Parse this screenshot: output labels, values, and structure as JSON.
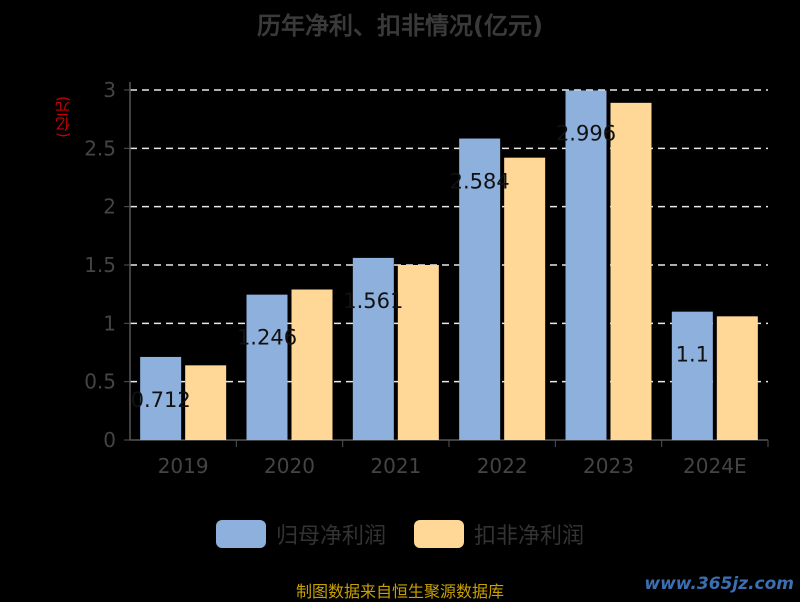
{
  "chart_data": {
    "type": "bar",
    "title": "历年净利、扣非情况(亿元)",
    "unit_label": "(亿元)",
    "categories": [
      "2019",
      "2020",
      "2021",
      "2022",
      "2023",
      "2024E"
    ],
    "series": [
      {
        "name": "归母净利润",
        "color": "#8eb0dd",
        "values": [
          0.712,
          1.246,
          1.561,
          2.584,
          2.996,
          1.1
        ],
        "labels": [
          "0.712",
          "1.246",
          "1.561",
          "2.584",
          "2.996",
          "1.1"
        ]
      },
      {
        "name": "扣非净利润",
        "color": "#ffd898",
        "values": [
          0.64,
          1.29,
          1.5,
          2.42,
          2.89,
          1.06
        ]
      }
    ],
    "yticks": [
      "0",
      "0.5",
      "1",
      "1.5",
      "2",
      "2.5",
      "3"
    ],
    "ylim": [
      0,
      3
    ],
    "grid": true,
    "legend_position": "bottom"
  },
  "source_text": "制图数据来自恒生聚源数据库",
  "watermark_text": "www.365jz.com"
}
